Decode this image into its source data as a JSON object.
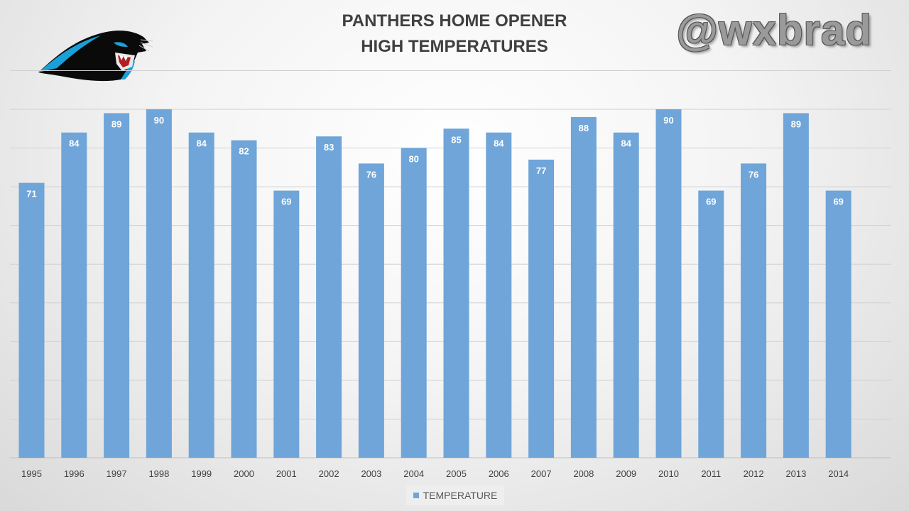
{
  "watermark": "@wxbrad",
  "logo": {
    "description": "carolina-panthers-logo"
  },
  "colors": {
    "bar": "#6fa5d8",
    "label": "#ffffff",
    "grid": "#d0d0d0",
    "axis_text": "#404040"
  },
  "chart_data": {
    "type": "bar",
    "title": [
      "PANTHERS HOME OPENER",
      "HIGH TEMPERATURES"
    ],
    "categories": [
      "1995",
      "1996",
      "1997",
      "1998",
      "1999",
      "2000",
      "2001",
      "2002",
      "2003",
      "2004",
      "2005",
      "2006",
      "2007",
      "2008",
      "2009",
      "2010",
      "2011",
      "2012",
      "2013",
      "2014"
    ],
    "series": [
      {
        "name": "TEMPERATURE",
        "values": [
          71,
          84,
          89,
          90,
          84,
          82,
          69,
          83,
          76,
          80,
          85,
          84,
          77,
          88,
          84,
          90,
          69,
          76,
          89,
          69
        ]
      }
    ],
    "ylim": [
      0,
      90
    ],
    "gridlines": true,
    "grid_step": 10,
    "xlabel": "",
    "ylabel": "",
    "legend": "bottom-center",
    "data_labels": true
  }
}
